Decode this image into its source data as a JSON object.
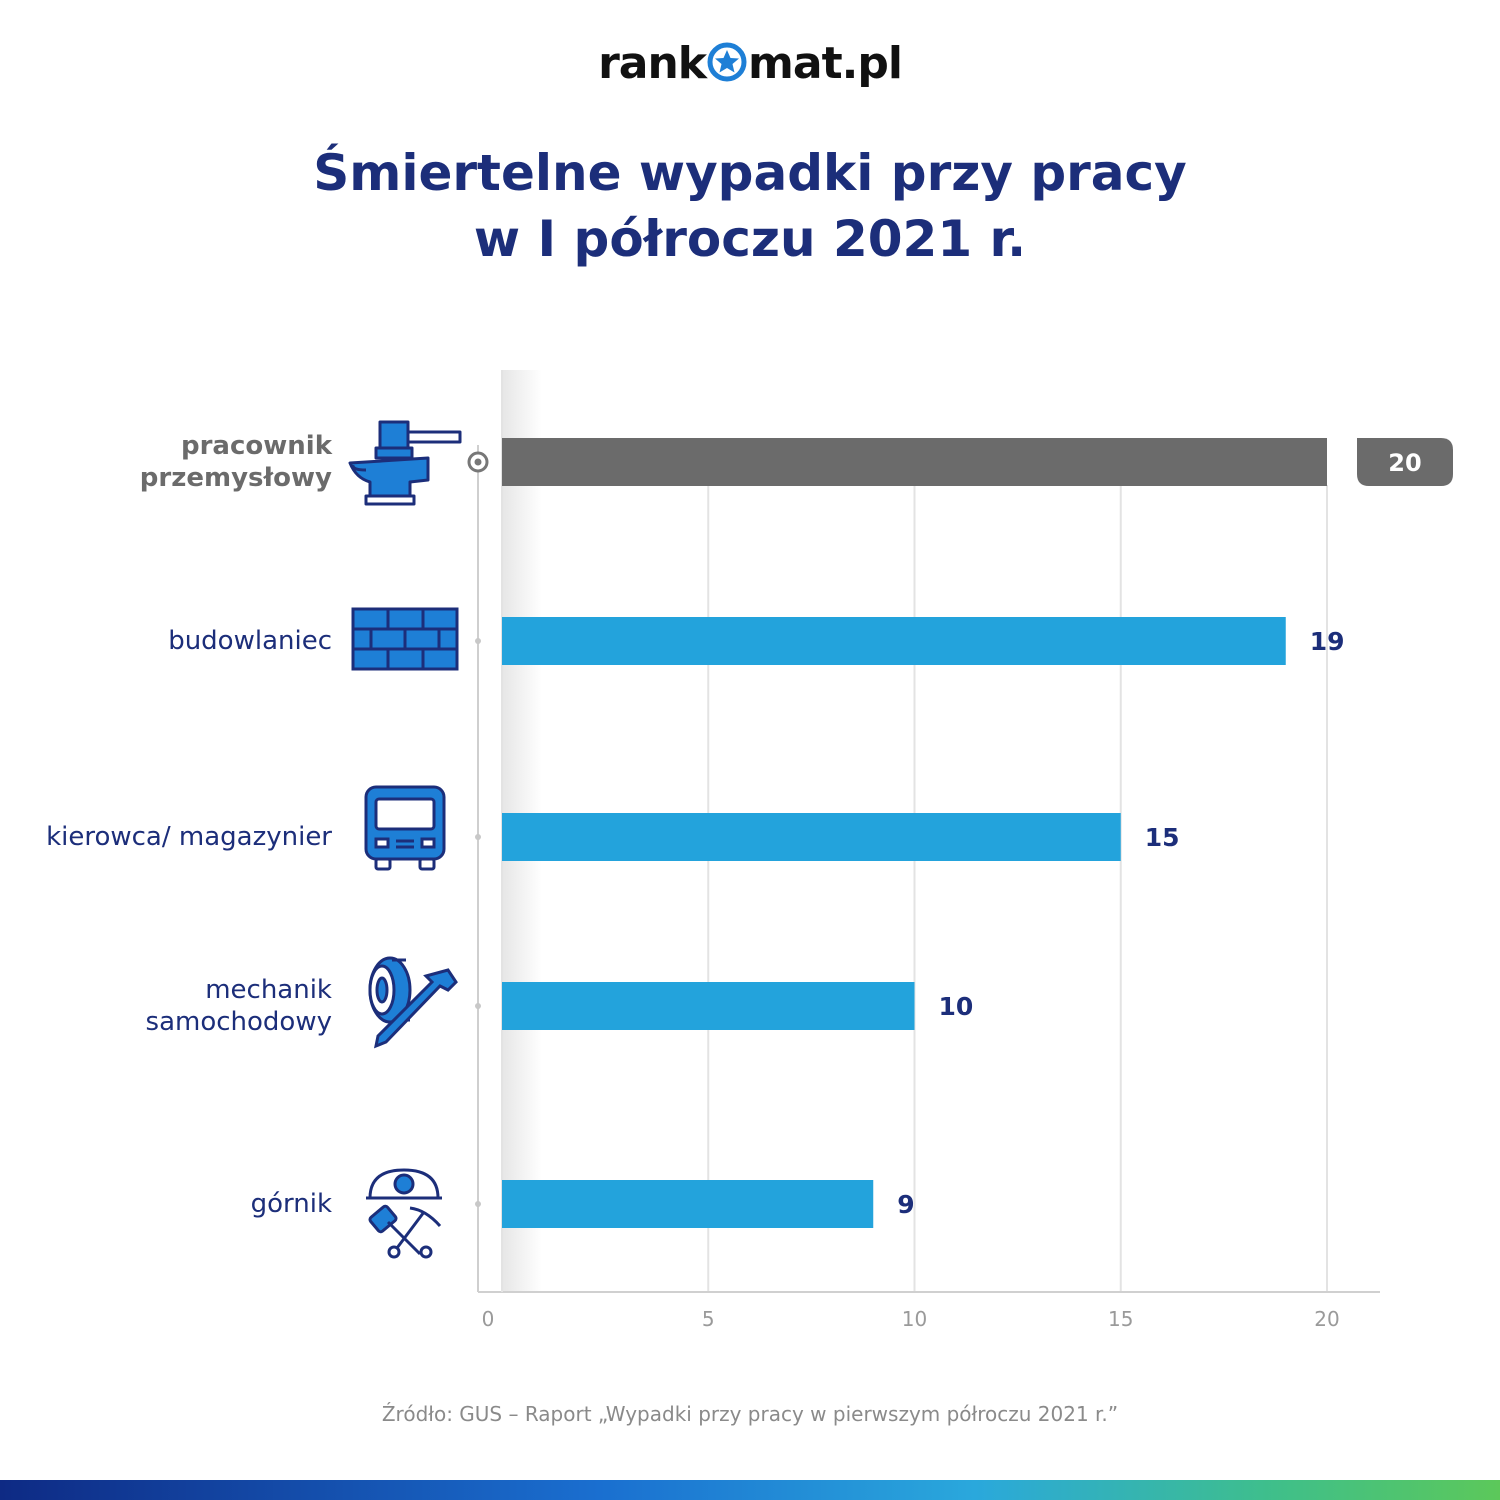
{
  "logo": {
    "before": "rank",
    "after": "mat.pl"
  },
  "title": {
    "line1": "Śmiertelne wypadki przy pracy",
    "line2": "w I półroczu 2021 r."
  },
  "source": "Źródło: GUS – Raport „Wypadki przy pracy w pierwszym półroczu 2021 r.”",
  "colors": {
    "title": "#1c2e7a",
    "bar": "#23a3dc",
    "highlight_bar": "#6b6b6b",
    "icon": "#1e7fd6",
    "icon_outline": "#1c2e7a",
    "footer_gradient_start": "#0e2a84",
    "footer_gradient_end": "#5cc85a"
  },
  "chart_data": {
    "type": "bar",
    "orientation": "horizontal",
    "categories": [
      "pracownik\nprzemysłowy",
      "budowlaniec",
      "kierowca/ magazynier",
      "mechanik\nsamochodowy",
      "górnik"
    ],
    "icons": [
      "anvil-icon",
      "brick-wall-icon",
      "truck-icon",
      "tire-wrench-icon",
      "miner-helmet-icon"
    ],
    "values": [
      20,
      19,
      15,
      10,
      9
    ],
    "highlight_index": 0,
    "xlim": [
      0,
      20
    ],
    "xticks": [
      0,
      5,
      10,
      15,
      20
    ],
    "grid": true
  }
}
